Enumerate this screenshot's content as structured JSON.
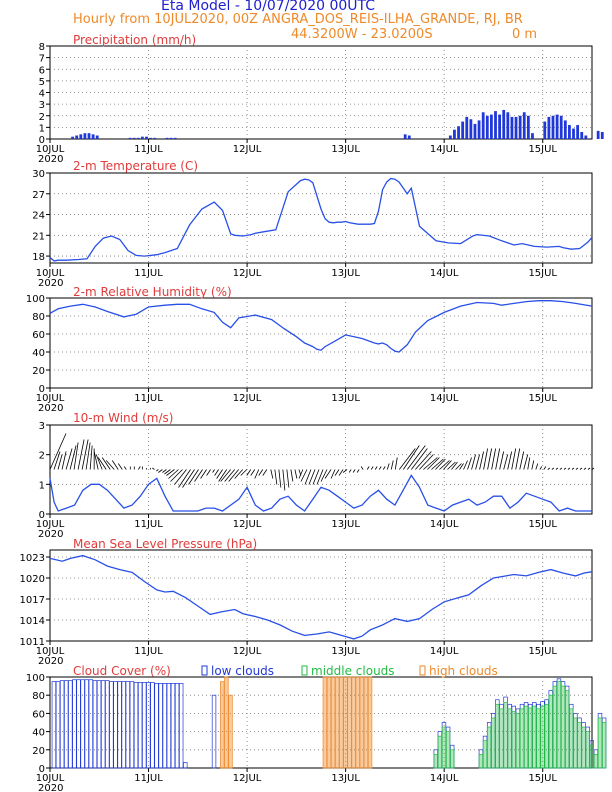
{
  "header": {
    "title": "Eta Model - 10/07/2020 00UTC",
    "subtitle": "Hourly from 10JUL2020, 00Z  ANGRA_DOS_REIS-ILHA_GRANDE, RJ, BR",
    "coords": "44.3200W - 23.0200S",
    "elevation": "0  m"
  },
  "colors": {
    "title": "#2020d0",
    "subtitle": "#ee8a2a",
    "panel_title": "#e03c3c",
    "line": "#2850e8",
    "low": "#2038d8",
    "middle": "#22bb44",
    "high": "#ee8a2a",
    "arrow": "#000000"
  },
  "x_axis": {
    "ticks": [
      "10JUL",
      "11JUL",
      "12JUL",
      "13JUL",
      "14JUL",
      "15JUL"
    ],
    "year": "2020",
    "hours_total": 132
  },
  "chart_data": [
    {
      "id": "precip",
      "type": "bar",
      "title": "Precipitation (mm/h)",
      "ylim": [
        0,
        8
      ],
      "yticks": [
        "0",
        "1",
        "2",
        "3",
        "4",
        "5",
        "6",
        "7",
        "8"
      ],
      "ytick_values": [
        0,
        1,
        2,
        3,
        4,
        5,
        6,
        7,
        8
      ],
      "x_start": 5.5,
      "values": [
        0.2,
        0.3,
        0.4,
        0.5,
        0.5,
        0.4,
        0.3,
        0,
        0,
        0,
        0,
        0,
        0,
        0,
        0.1,
        0.1,
        0.1,
        0.2,
        0.2,
        0.1,
        0.1,
        0,
        0,
        0.1,
        0.1,
        0.1,
        0,
        0,
        0,
        0,
        0,
        0,
        0,
        0,
        0,
        0,
        0,
        0,
        0,
        0,
        0,
        0,
        0,
        0,
        0,
        0,
        0,
        0,
        0,
        0,
        0,
        0,
        0,
        0,
        0,
        0,
        0,
        0,
        0,
        0,
        0,
        0,
        0,
        0,
        0,
        0,
        0,
        0,
        0,
        0,
        0,
        0,
        0,
        0,
        0,
        0,
        0,
        0,
        0,
        0,
        0,
        0.4,
        0.3,
        0,
        0,
        0,
        0,
        0,
        0,
        0,
        0,
        0,
        0.3,
        0.8,
        1.1,
        1.5,
        1.9,
        1.7,
        1.3,
        1.6,
        2.3,
        2.0,
        2.1,
        2.4,
        2.1,
        2.5,
        2.3,
        1.9,
        1.9,
        2.0,
        2.3,
        2.0,
        0.5,
        0,
        0,
        1.5,
        1.9,
        2.0,
        2.1,
        2.0,
        1.6,
        1.2,
        0.9,
        1.2,
        0.6,
        0.3,
        0,
        0,
        0.7,
        0.6
      ]
    },
    {
      "id": "temp",
      "type": "line",
      "title": "2-m Temperature (C)",
      "ylim": [
        17,
        30
      ],
      "yticks": [
        "18",
        "21",
        "24",
        "27",
        "30"
      ],
      "ytick_values": [
        18,
        21,
        24,
        27,
        30
      ],
      "x": [
        0,
        1,
        2,
        4,
        7,
        9,
        11,
        13,
        15,
        17,
        19,
        21,
        23,
        26,
        28,
        31,
        34,
        37,
        40,
        42,
        44,
        45,
        47,
        49,
        50,
        52,
        55,
        58,
        61,
        62,
        63,
        64,
        66,
        67,
        68,
        69,
        70,
        71,
        72,
        73,
        75,
        78,
        79,
        80,
        81,
        82,
        83,
        84,
        85,
        87,
        88,
        90,
        94,
        97,
        100,
        103,
        104,
        107,
        110,
        113,
        115,
        118,
        121,
        124,
        125,
        127,
        129,
        131,
        132
      ],
      "values": [
        17.8,
        17.3,
        17.4,
        17.4,
        17.5,
        17.6,
        19.4,
        20.6,
        20.9,
        20.4,
        18.8,
        18.1,
        18.0,
        18.2,
        18.5,
        19.1,
        22.5,
        24.8,
        25.8,
        24.6,
        21.2,
        21.0,
        20.9,
        21.1,
        21.3,
        21.5,
        21.8,
        27.3,
        28.9,
        29.1,
        29.0,
        28.6,
        24.8,
        23.4,
        22.9,
        22.8,
        22.9,
        22.9,
        23.0,
        22.8,
        22.6,
        22.6,
        22.7,
        24.5,
        27.6,
        28.7,
        29.2,
        29.1,
        28.7,
        27.0,
        27.8,
        22.3,
        20.2,
        19.9,
        19.8,
        20.9,
        21.1,
        20.9,
        20.2,
        19.6,
        19.8,
        19.4,
        19.3,
        19.4,
        19.2,
        19.0,
        19.1,
        20.0,
        20.7
      ]
    },
    {
      "id": "rh",
      "type": "line",
      "title": "2-m Relative Humidity (%)",
      "ylim": [
        0,
        100
      ],
      "yticks": [
        "0",
        "20",
        "40",
        "60",
        "80",
        "100"
      ],
      "ytick_values": [
        0,
        20,
        40,
        60,
        80,
        100
      ],
      "x": [
        0,
        2,
        5,
        8,
        11,
        14,
        18,
        21,
        24,
        28,
        31,
        34,
        37,
        40,
        42,
        44,
        46,
        50,
        54,
        57,
        60,
        62,
        64,
        65,
        66,
        67,
        69,
        72,
        76,
        79,
        80,
        81,
        82,
        83,
        84,
        85,
        87,
        89,
        92,
        96,
        100,
        104,
        108,
        110,
        113,
        116,
        119,
        122,
        125,
        128,
        132
      ],
      "values": [
        83,
        88,
        91,
        93,
        90,
        85,
        79,
        82,
        90,
        92,
        93,
        93,
        88,
        84,
        73,
        67,
        78,
        81,
        76,
        66,
        57,
        50,
        46,
        43,
        42,
        46,
        51,
        59,
        55,
        50,
        49,
        50,
        48,
        44,
        41,
        40,
        48,
        62,
        75,
        84,
        91,
        95,
        94,
        92,
        94,
        96,
        97,
        97,
        96,
        94,
        91
      ]
    },
    {
      "id": "wind",
      "type": "line",
      "title": "10-m Wind (m/s)",
      "ylim": [
        0,
        3
      ],
      "yticks": [
        "0",
        "1",
        "2",
        "3"
      ],
      "ytick_values": [
        0,
        1,
        2,
        3
      ],
      "x": [
        0,
        1,
        2,
        4,
        6,
        8,
        10,
        12,
        14,
        16,
        18,
        20,
        22,
        24,
        26,
        28,
        30,
        32,
        34,
        36,
        38,
        40,
        42,
        44,
        46,
        48,
        50,
        52,
        54,
        56,
        58,
        60,
        62,
        64,
        66,
        68,
        70,
        72,
        74,
        76,
        78,
        80,
        82,
        84,
        86,
        88,
        90,
        92,
        94,
        96,
        98,
        100,
        102,
        104,
        106,
        108,
        110,
        112,
        114,
        116,
        118,
        120,
        122,
        124,
        126,
        128,
        130,
        132
      ],
      "values": [
        1.2,
        0.4,
        0.1,
        0.2,
        0.3,
        0.8,
        1.0,
        1.0,
        0.8,
        0.5,
        0.2,
        0.3,
        0.6,
        1.0,
        1.2,
        0.6,
        0.1,
        0.1,
        0.1,
        0.1,
        0.2,
        0.2,
        0.1,
        0.3,
        0.5,
        0.9,
        0.3,
        0.1,
        0.2,
        0.5,
        0.6,
        0.3,
        0.1,
        0.5,
        0.9,
        0.8,
        0.6,
        0.4,
        0.2,
        0.3,
        0.6,
        0.8,
        0.5,
        0.3,
        0.8,
        1.3,
        0.9,
        0.3,
        0.2,
        0.1,
        0.3,
        0.4,
        0.5,
        0.3,
        0.4,
        0.6,
        0.6,
        0.2,
        0.4,
        0.7,
        0.6,
        0.5,
        0.4,
        0.1,
        0.2,
        0.1,
        0.1,
        0.1
      ],
      "arrows": {
        "dx": [
          0.4,
          0.15,
          0.1,
          0.1,
          0.15,
          0.15,
          0.1,
          0.15,
          0.15,
          0.1,
          0.05,
          0,
          -0.1,
          -0.15,
          -0.2,
          -0.2,
          -0.2,
          -0.15,
          -0.1,
          -0.05,
          0,
          0,
          0.05,
          0,
          0,
          0,
          -0.05,
          -0.05,
          -0.1,
          -0.1,
          -0.15,
          -0.2,
          -0.25,
          -0.3,
          -0.3,
          -0.3,
          -0.3,
          -0.25,
          -0.2,
          -0.15,
          -0.1,
          -0.05,
          -0.1,
          -0.15,
          -0.2,
          -0.25,
          -0.25,
          -0.25,
          -0.2,
          -0.15,
          -0.1,
          -0.1,
          -0.1,
          -0.1,
          -0.1,
          0.05,
          0.05,
          0.05,
          0.05,
          0.05,
          0.05,
          0.05,
          0.05,
          -0.1,
          -0.15,
          -0.15,
          -0.15,
          -0.15,
          -0.15,
          -0.15,
          -0.15,
          -0.1,
          -0.1,
          -0.1,
          -0.1,
          -0.05,
          -0.05,
          -0.05,
          -0.05,
          0.05,
          0.05,
          0.05,
          0.05,
          0.05,
          0.05,
          0.05,
          0.05,
          0.4,
          0.4,
          0.45,
          0.4,
          0.4,
          0.35,
          0.35,
          0.3,
          0.3,
          0.25,
          0.25,
          0.2,
          0.2,
          0.15,
          0.15,
          0.1,
          0.1,
          0.1,
          0.1,
          0.1,
          0.1,
          0.1,
          0.1,
          0.1,
          0.1,
          0.1,
          0.1,
          0.1,
          0.1,
          0.1,
          0.1,
          0.1,
          0.05,
          0.05,
          0.05,
          0.05,
          0.05,
          0.05,
          0.05,
          0.05,
          0.05,
          0.05,
          0.05,
          0.05,
          0.05,
          0.05,
          0.05,
          0.05,
          0.05
        ],
        "dy": [
          1.2,
          0.6,
          0.5,
          0.6,
          0.7,
          0.8,
          0.9,
          1.0,
          1.0,
          0.9,
          0.8,
          0.7,
          0.6,
          0.5,
          0.4,
          0.4,
          0.3,
          0.3,
          0.2,
          0.1,
          0.1,
          0.1,
          0.1,
          0.1,
          0.05,
          0.05,
          0.05,
          -0.05,
          -0.1,
          -0.1,
          -0.15,
          -0.2,
          -0.3,
          -0.4,
          -0.5,
          -0.6,
          -0.6,
          -0.5,
          -0.4,
          -0.3,
          -0.2,
          -0.1,
          -0.2,
          -0.3,
          -0.4,
          -0.4,
          -0.4,
          -0.4,
          -0.3,
          -0.2,
          -0.2,
          -0.2,
          -0.3,
          -0.2,
          -0.2,
          -0.3,
          -0.5,
          -0.6,
          -0.7,
          -0.6,
          -0.4,
          -0.3,
          -0.2,
          -0.3,
          -0.4,
          -0.5,
          -0.5,
          -0.5,
          -0.5,
          -0.4,
          -0.3,
          -0.3,
          -0.2,
          -0.2,
          -0.1,
          -0.1,
          -0.1,
          -0.1,
          0.1,
          0.1,
          0.1,
          0.1,
          0.1,
          0.1,
          0.2,
          0.3,
          0.4,
          0.7,
          0.8,
          0.8,
          0.7,
          0.6,
          0.5,
          0.4,
          0.4,
          0.35,
          0.35,
          0.3,
          0.3,
          0.25,
          0.25,
          0.2,
          0.2,
          0.3,
          0.4,
          0.5,
          0.5,
          0.6,
          0.7,
          0.7,
          0.7,
          0.7,
          0.6,
          0.5,
          0.6,
          0.7,
          0.7,
          0.6,
          0.5,
          0.4,
          0.3,
          0.2,
          0.1,
          0.1,
          0.05,
          0.05,
          0.05,
          0.05,
          0.05,
          0.05,
          0.05,
          0.05,
          0.05,
          0.05,
          0.05,
          0.05
        ]
      }
    },
    {
      "id": "mslp",
      "type": "line",
      "title": "Mean Sea Level Pressure (hPa)",
      "ylim": [
        1011,
        1024
      ],
      "yticks": [
        "1011",
        "1014",
        "1017",
        "1020",
        "1023"
      ],
      "ytick_values": [
        1011,
        1014,
        1017,
        1020,
        1023
      ],
      "x": [
        0,
        3,
        5,
        8,
        11,
        14,
        17,
        20,
        23,
        26,
        28,
        30,
        33,
        36,
        39,
        42,
        45,
        47,
        50,
        53,
        56,
        59,
        62,
        65,
        68,
        71,
        74,
        76,
        78,
        81,
        84,
        87,
        90,
        93,
        96,
        99,
        102,
        105,
        108,
        110,
        113,
        116,
        119,
        122,
        125,
        128,
        130,
        132
      ],
      "values": [
        1022.8,
        1022.4,
        1022.8,
        1023.2,
        1022.6,
        1021.7,
        1021.2,
        1020.8,
        1019.5,
        1018.3,
        1018.0,
        1018.1,
        1017.2,
        1016.0,
        1014.8,
        1015.2,
        1015.5,
        1014.9,
        1014.5,
        1014.0,
        1013.3,
        1012.4,
        1011.8,
        1012.0,
        1012.3,
        1011.8,
        1011.3,
        1011.7,
        1012.6,
        1013.3,
        1014.2,
        1013.8,
        1014.2,
        1015.5,
        1016.6,
        1017.1,
        1017.6,
        1018.9,
        1020.0,
        1020.2,
        1020.5,
        1020.3,
        1020.8,
        1021.2,
        1020.7,
        1020.3,
        1020.7,
        1020.9
      ]
    },
    {
      "id": "cloud",
      "type": "bar",
      "title": "Cloud Cover (%)",
      "ylim": [
        0,
        100
      ],
      "yticks": [
        "0",
        "20",
        "40",
        "60",
        "80",
        "100"
      ],
      "ytick_values": [
        0,
        20,
        40,
        60,
        80,
        100
      ],
      "legend": [
        "low clouds",
        "middle clouds",
        "high clouds"
      ],
      "low": [
        0,
        95,
        95,
        96,
        96,
        96,
        97,
        97,
        97,
        97,
        97,
        96,
        96,
        96,
        96,
        95,
        95,
        95,
        95,
        95,
        95,
        94,
        94,
        94,
        94,
        94,
        93,
        93,
        93,
        93,
        93,
        93,
        93,
        6,
        0,
        0,
        0,
        0,
        0,
        0,
        0,
        0,
        0,
        0,
        0,
        0,
        0,
        0,
        0,
        0,
        0,
        0,
        0,
        0,
        0,
        0,
        0,
        0,
        0,
        0,
        0,
        0,
        0,
        0,
        0,
        0,
        0,
        0,
        0,
        0,
        0,
        0,
        0,
        0,
        0,
        0,
        0,
        0,
        0,
        0,
        0,
        0,
        0,
        0,
        0,
        0,
        0,
        0,
        0,
        0,
        0,
        0,
        0,
        0,
        0,
        0,
        0,
        0,
        0,
        0,
        0,
        0,
        0,
        0,
        0,
        0,
        0,
        0,
        0,
        0,
        0,
        0,
        0,
        0,
        0,
        0,
        0,
        0,
        0,
        0,
        0,
        0,
        0,
        0,
        0,
        0,
        0,
        0,
        0,
        0,
        0,
        0,
        0
      ],
      "middle": [],
      "high": [],
      "low_segments": [
        {
          "start": 40,
          "values": [
            80,
            0
          ]
        },
        {
          "start": 94,
          "values": [
            20,
            40,
            50,
            45,
            25,
            0
          ]
        },
        {
          "start": 105,
          "values": [
            20,
            35,
            50,
            60,
            75,
            70,
            78,
            70,
            68,
            65,
            70,
            72,
            70,
            72,
            70,
            73,
            75,
            85,
            95,
            98,
            95,
            90,
            70,
            60,
            55,
            50,
            45,
            30,
            20,
            60,
            55
          ]
        }
      ],
      "middle_segments": [
        {
          "start": 94,
          "values": [
            15,
            35,
            45,
            40,
            20,
            0
          ]
        },
        {
          "start": 105,
          "values": [
            15,
            30,
            45,
            55,
            70,
            65,
            72,
            65,
            62,
            60,
            65,
            68,
            66,
            68,
            65,
            68,
            70,
            80,
            90,
            95,
            90,
            85,
            65,
            55,
            50,
            45,
            40,
            25,
            15,
            55,
            50
          ]
        }
      ],
      "high_segments": [
        {
          "start": 42,
          "values": [
            95,
            100,
            80
          ]
        },
        {
          "start": 67,
          "values": [
            100,
            100,
            100,
            100,
            100,
            100,
            100,
            100,
            100,
            100,
            100,
            100
          ]
        }
      ]
    }
  ]
}
